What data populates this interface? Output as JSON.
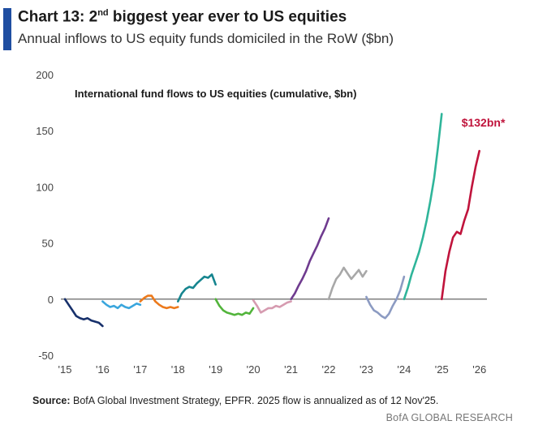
{
  "header": {
    "title_prefix": "Chart 13: 2",
    "title_sup": "nd",
    "title_suffix": " biggest year ever to US equities",
    "subtitle": "Annual inflows to US equity funds domiciled in the RoW ($bn)"
  },
  "footer": {
    "source_label": "Source:",
    "source_text": " BofA Global Investment Strategy, EPFR. 2025 flow is annualized as of 12 Nov'25.",
    "brand": "BofA GLOBAL RESEARCH"
  },
  "chart_data": {
    "type": "line",
    "title": "International fund flows to US equities (cumulative, $bn)",
    "annotation": "$132bn*",
    "annotation_color": "#c0143c",
    "ylim": [
      -50,
      200
    ],
    "xlim": [
      2015,
      2026.2
    ],
    "y_ticks": [
      "-50",
      "0",
      "50",
      "100",
      "150",
      "200"
    ],
    "x_ticks": [
      {
        "label": "'15",
        "x": 2015
      },
      {
        "label": "'16",
        "x": 2016
      },
      {
        "label": "'17",
        "x": 2017
      },
      {
        "label": "'18",
        "x": 2018
      },
      {
        "label": "'19",
        "x": 2019
      },
      {
        "label": "'20",
        "x": 2020
      },
      {
        "label": "'21",
        "x": 2021
      },
      {
        "label": "'22",
        "x": 2022
      },
      {
        "label": "'23",
        "x": 2023
      },
      {
        "label": "'24",
        "x": 2024
      },
      {
        "label": "'25",
        "x": 2025
      },
      {
        "label": "'26",
        "x": 2026
      }
    ],
    "grid": false,
    "zero_line": true,
    "series": [
      {
        "year": 2015,
        "color": "#17306b",
        "x": [
          2015.0,
          2015.1,
          2015.2,
          2015.3,
          2015.4,
          2015.5,
          2015.6,
          2015.7,
          2015.8,
          2015.9,
          2016.0
        ],
        "y": [
          0,
          -5,
          -10,
          -15,
          -17,
          -18,
          -17,
          -19,
          -20,
          -21,
          -24
        ]
      },
      {
        "year": 2016,
        "color": "#3aa6dd",
        "x": [
          2016.0,
          2016.1,
          2016.2,
          2016.3,
          2016.4,
          2016.5,
          2016.6,
          2016.7,
          2016.8,
          2016.9,
          2017.0
        ],
        "y": [
          -2,
          -5,
          -7,
          -6,
          -8,
          -5,
          -7,
          -8,
          -6,
          -4,
          -5
        ]
      },
      {
        "year": 2017,
        "color": "#ec7a1c",
        "x": [
          2017.0,
          2017.1,
          2017.2,
          2017.3,
          2017.4,
          2017.5,
          2017.6,
          2017.7,
          2017.8,
          2017.9,
          2018.0
        ],
        "y": [
          -2,
          1,
          3,
          3,
          -2,
          -5,
          -7,
          -8,
          -7,
          -8,
          -7
        ]
      },
      {
        "year": 2018,
        "color": "#16858f",
        "x": [
          2018.0,
          2018.1,
          2018.2,
          2018.3,
          2018.4,
          2018.5,
          2018.6,
          2018.7,
          2018.8,
          2018.9,
          2019.0
        ],
        "y": [
          -2,
          5,
          9,
          11,
          10,
          14,
          17,
          20,
          19,
          22,
          13
        ]
      },
      {
        "year": 2019,
        "color": "#52b43b",
        "x": [
          2019.0,
          2019.1,
          2019.2,
          2019.3,
          2019.4,
          2019.5,
          2019.6,
          2019.7,
          2019.8,
          2019.9,
          2020.0
        ],
        "y": [
          0,
          -6,
          -10,
          -12,
          -13,
          -14,
          -13,
          -14,
          -12,
          -13,
          -8
        ]
      },
      {
        "year": 2020,
        "color": "#d69bb0",
        "x": [
          2020.0,
          2020.1,
          2020.2,
          2020.3,
          2020.4,
          2020.5,
          2020.6,
          2020.7,
          2020.8,
          2020.9,
          2021.0
        ],
        "y": [
          -1,
          -6,
          -12,
          -10,
          -8,
          -8,
          -6,
          -7,
          -5,
          -3,
          -2
        ]
      },
      {
        "year": 2021,
        "color": "#6f3b8f",
        "x": [
          2021.0,
          2021.1,
          2021.2,
          2021.3,
          2021.4,
          2021.5,
          2021.6,
          2021.7,
          2021.8,
          2021.9,
          2022.0
        ],
        "y": [
          0,
          5,
          12,
          18,
          25,
          34,
          41,
          48,
          56,
          63,
          72
        ]
      },
      {
        "year": 2022,
        "color": "#a8a8a8",
        "x": [
          2022.0,
          2022.1,
          2022.2,
          2022.3,
          2022.4,
          2022.5,
          2022.6,
          2022.7,
          2022.8,
          2022.9,
          2023.0
        ],
        "y": [
          0,
          10,
          18,
          22,
          28,
          23,
          18,
          22,
          26,
          20,
          25
        ]
      },
      {
        "year": 2023,
        "color": "#8c9bc2",
        "x": [
          2023.0,
          2023.1,
          2023.2,
          2023.3,
          2023.4,
          2023.5,
          2023.6,
          2023.7,
          2023.8,
          2023.9,
          2024.0
        ],
        "y": [
          2,
          -5,
          -10,
          -12,
          -15,
          -17,
          -13,
          -6,
          0,
          8,
          20
        ]
      },
      {
        "year": 2024,
        "color": "#2fb59a",
        "x": [
          2024.0,
          2024.1,
          2024.2,
          2024.3,
          2024.4,
          2024.5,
          2024.6,
          2024.7,
          2024.8,
          2024.9,
          2025.0
        ],
        "y": [
          0,
          10,
          22,
          32,
          42,
          55,
          70,
          88,
          108,
          135,
          165
        ]
      },
      {
        "year": 2025,
        "color": "#c0143c",
        "x": [
          2025.0,
          2025.1,
          2025.2,
          2025.3,
          2025.4,
          2025.5,
          2025.6,
          2025.7,
          2025.8,
          2025.9,
          2026.0
        ],
        "y": [
          0,
          25,
          42,
          55,
          60,
          58,
          70,
          80,
          100,
          118,
          132
        ]
      }
    ]
  }
}
